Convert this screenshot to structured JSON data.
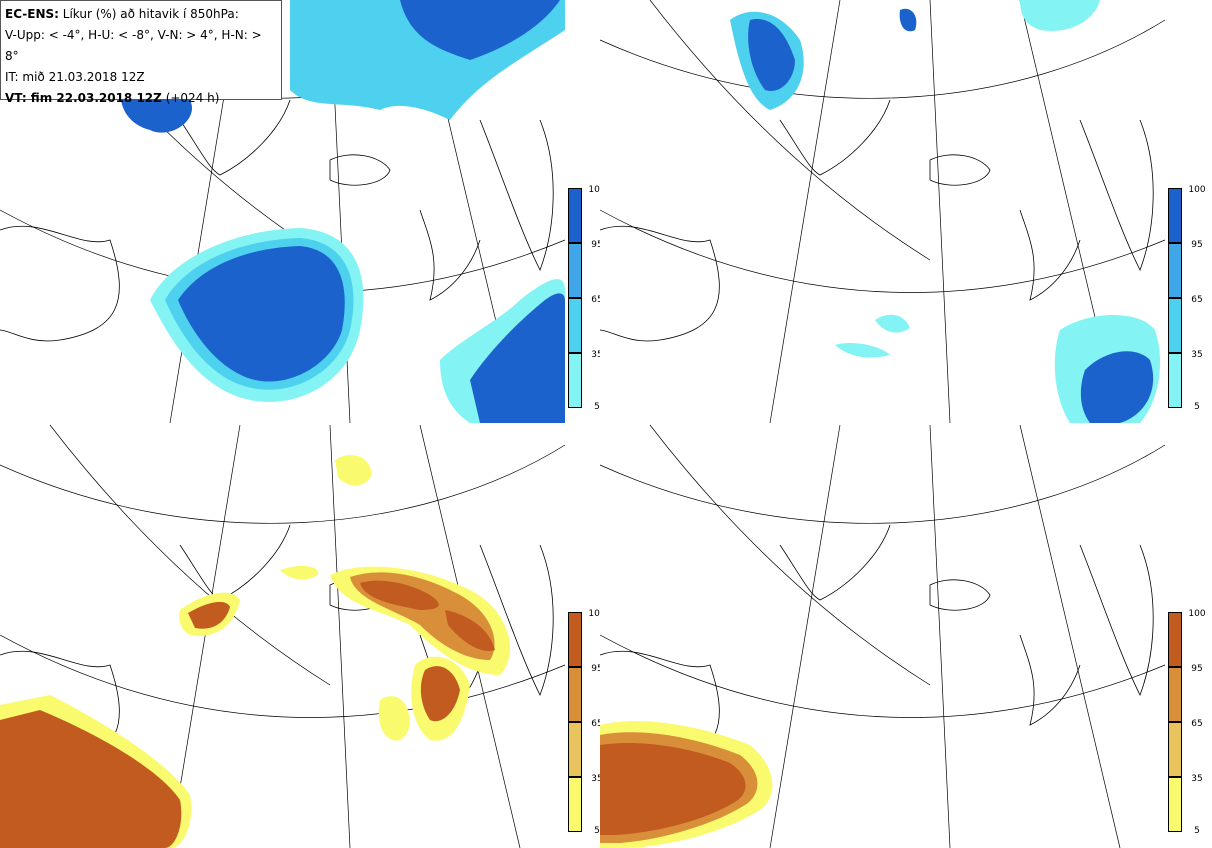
{
  "legend": {
    "line1_bold": "EC-ENS:",
    "line1_rest": " Líkur (%) að hitavik í 850hPa:",
    "line2": "V-Upp: < -4°, H-U: < -8°, V-N: > 4°, H-N: > 8°",
    "line3": "IT: mið 21.03.2018 12Z",
    "line4_bold": "VT: fim 22.03.2018 12Z",
    "line4_rest": " (+024 h)"
  },
  "colorbar_labels": [
    "100",
    "95",
    "65",
    "35",
    "5"
  ],
  "colors": {
    "cold": [
      "#83f3f3",
      "#4ed1ee",
      "#3ea6e9",
      "#1c62cc"
    ],
    "warm": [
      "#fafa6e",
      "#e9c45e",
      "#d98f3a",
      "#c25b20"
    ],
    "land_line": "#000000",
    "grid_line": "#000000"
  }
}
